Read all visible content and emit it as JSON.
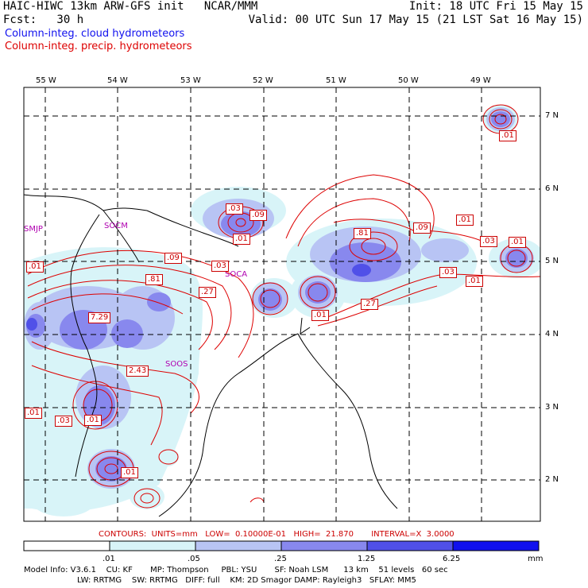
{
  "header": {
    "line1_left": "HAIC-HIWC 13km ARW-GFS init   NCAR/MMM",
    "line1_right": "Init: 18 UTC Fri 15 May 15",
    "line2_left": "Fcst:   30 h",
    "line2_right": "Valid: 00 UTC Sun 17 May 15 (21 LST Sat 16 May 15)",
    "legend_cloud": "Column-integ. cloud hydrometeors",
    "legend_precip": "Column-integ. precip. hydrometeors",
    "color_cloud": "#1010ee",
    "color_precip": "#dd0000"
  },
  "map": {
    "lon_labels": [
      "55 W",
      "54 W",
      "53 W",
      "52 W",
      "51 W",
      "50 W",
      "49 W"
    ],
    "lat_labels": [
      "7 N",
      "6 N",
      "5 N",
      "4 N",
      "3 N",
      "2 N"
    ],
    "stations": [
      "SMJP",
      "SOCM",
      "SOCA",
      "SOOS"
    ],
    "contour_labels": [
      ".01",
      ".03",
      ".09",
      ".01",
      ".09",
      ".03",
      ".81",
      ".01",
      ".01",
      ".03",
      ".03",
      ".09",
      ".81",
      ".27",
      ".01",
      ".01",
      "7.29",
      "2.43",
      ".27",
      ".01",
      ".03",
      ".01",
      ".01",
      ".01"
    ]
  },
  "footer": {
    "contours_line": "CONTOURS:  UNITS=mm   LOW=  0.10000E-01   HIGH=  21.870       INTERVAL=X  3.0000",
    "colorbar_ticks": [
      ".01",
      ".05",
      ".25",
      "1.25",
      "6.25"
    ],
    "colorbar_unit": "mm",
    "colorbar_colors": [
      "#ffffff",
      "#d8f4f8",
      "#b8c4f4",
      "#8888ee",
      "#5050e8",
      "#1010ee"
    ],
    "model_info_1": "Model Info: V3.6.1    CU: KF       MP: Thompson     PBL: YSU       SF: Noah LSM      13 km    51 levels   60 sec",
    "model_info_2": "LW: RRTMG    SW: RRTMG   DIFF: full    KM: 2D Smagor DAMP: Rayleigh3   SFLAY: MM5"
  }
}
